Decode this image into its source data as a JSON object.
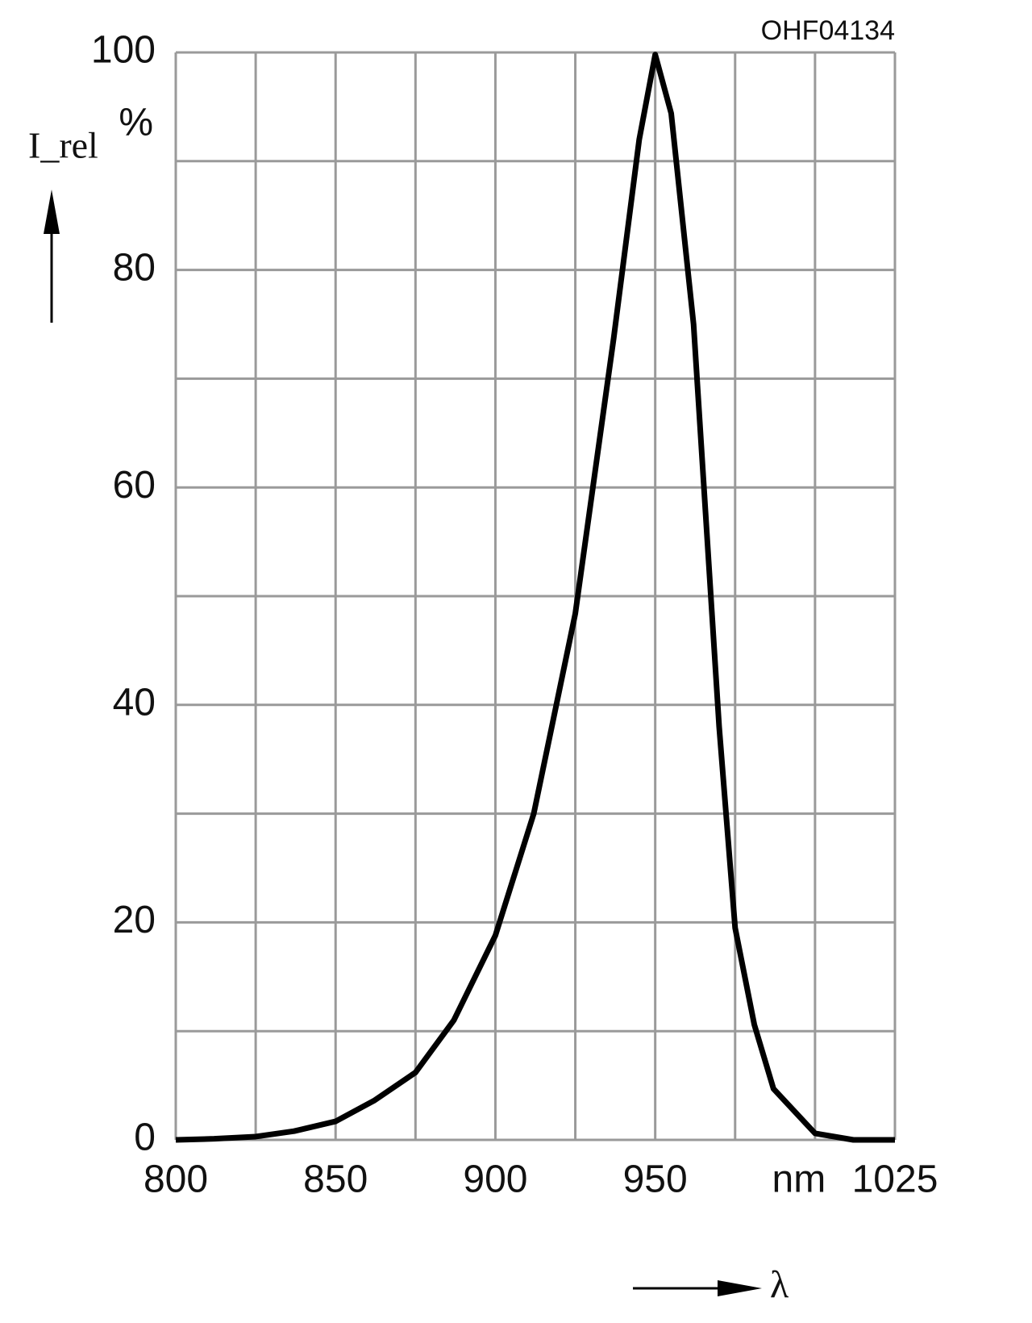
{
  "chart_data": {
    "type": "line",
    "code": "OHF04134",
    "y_label": "I_rel",
    "y_unit": "%",
    "x_label": "λ",
    "x_unit": "nm",
    "x": [
      800,
      812,
      825,
      837,
      850,
      862,
      875,
      887,
      900,
      912,
      925,
      937,
      945,
      950,
      955,
      962,
      970,
      975,
      981,
      987,
      1000,
      1012,
      1025
    ],
    "series": [
      {
        "name": "I_rel",
        "color": "#000000",
        "values": [
          0,
          0.1,
          0.3,
          0.8,
          1.7,
          3.6,
          6.2,
          11,
          18.8,
          30,
          48.4,
          73.7,
          92,
          99.8,
          94.4,
          75,
          38,
          19.5,
          10.6,
          4.7,
          0.6,
          0,
          0
        ]
      }
    ],
    "xlim": [
      800,
      1025
    ],
    "xticks": [
      800,
      850,
      900,
      950,
      1025
    ],
    "xminor": [
      825,
      875,
      925,
      975,
      1000
    ],
    "ylim": [
      0,
      100
    ],
    "yticks": [
      0,
      20,
      40,
      60,
      80,
      100
    ],
    "yminor": [
      10,
      30,
      50,
      70,
      90
    ],
    "grid": true
  }
}
